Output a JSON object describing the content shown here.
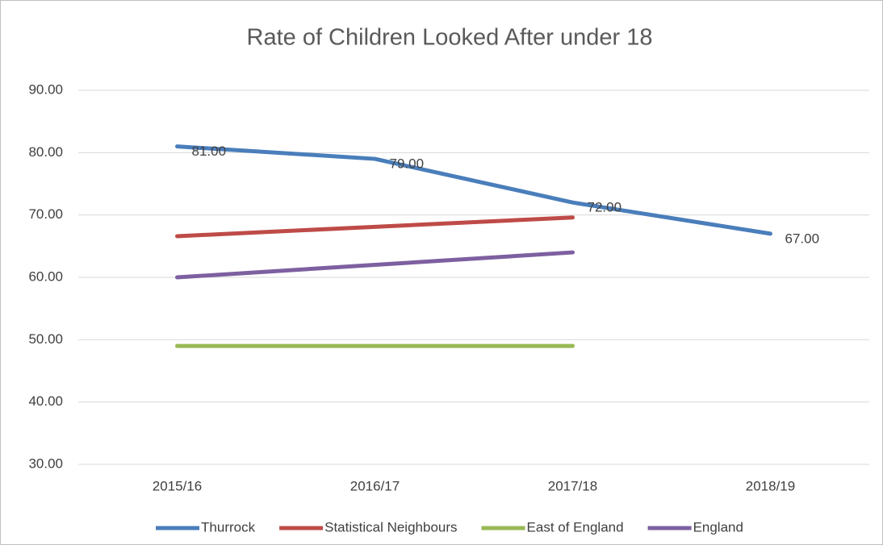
{
  "chart_data": {
    "type": "line",
    "title": "Rate of Children Looked After under 18",
    "categories": [
      "2015/16",
      "2016/17",
      "2017/18",
      "2018/19"
    ],
    "series": [
      {
        "name": "Thurrock",
        "color": "#4a7ebb",
        "values": [
          81,
          79,
          72,
          67
        ],
        "value_labels": [
          "81.00",
          "79.00",
          "72.00",
          "67.00"
        ]
      },
      {
        "name": "Statistical Neighbours",
        "color": "#be4b48",
        "values": [
          66.6,
          68.1,
          69.6,
          null
        ]
      },
      {
        "name": "East of England",
        "color": "#98b954",
        "values": [
          49,
          49,
          49,
          null
        ]
      },
      {
        "name": "England",
        "color": "#7d60a0",
        "values": [
          60,
          62,
          64,
          null
        ]
      }
    ],
    "ylim": [
      30,
      90
    ],
    "yticks": [
      {
        "value": 30,
        "label": "30.00"
      },
      {
        "value": 40,
        "label": "40.00"
      },
      {
        "value": 50,
        "label": "50.00"
      },
      {
        "value": 60,
        "label": "60.00"
      },
      {
        "value": 70,
        "label": "70.00"
      },
      {
        "value": 80,
        "label": "80.00"
      },
      {
        "value": 90,
        "label": "90.00"
      }
    ],
    "grid": true,
    "legend": "bottom"
  }
}
